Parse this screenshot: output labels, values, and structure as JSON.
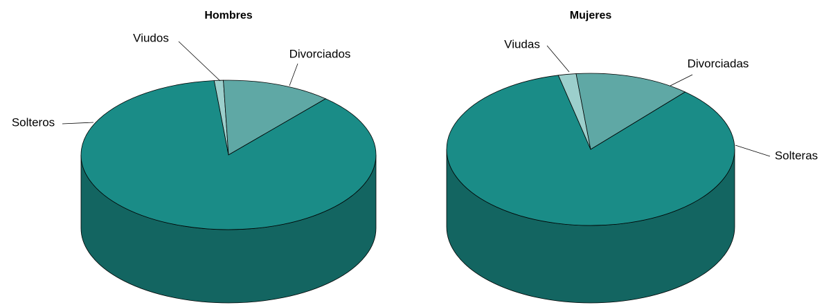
{
  "chart_data": [
    {
      "type": "pie3d",
      "title": "Hombres",
      "categories": [
        "Viudos",
        "Divorciados",
        "Solteros"
      ],
      "values": [
        1,
        12,
        87
      ],
      "colors": [
        "#9ccfcc",
        "#5fa8a5",
        "#1a8c87"
      ]
    },
    {
      "type": "pie3d",
      "title": "Mujeres",
      "categories": [
        "Viudas",
        "Divorciadas",
        "Solteras"
      ],
      "values": [
        2,
        13,
        85
      ],
      "colors": [
        "#9ccfcc",
        "#5fa8a5",
        "#1a8c87"
      ]
    }
  ]
}
